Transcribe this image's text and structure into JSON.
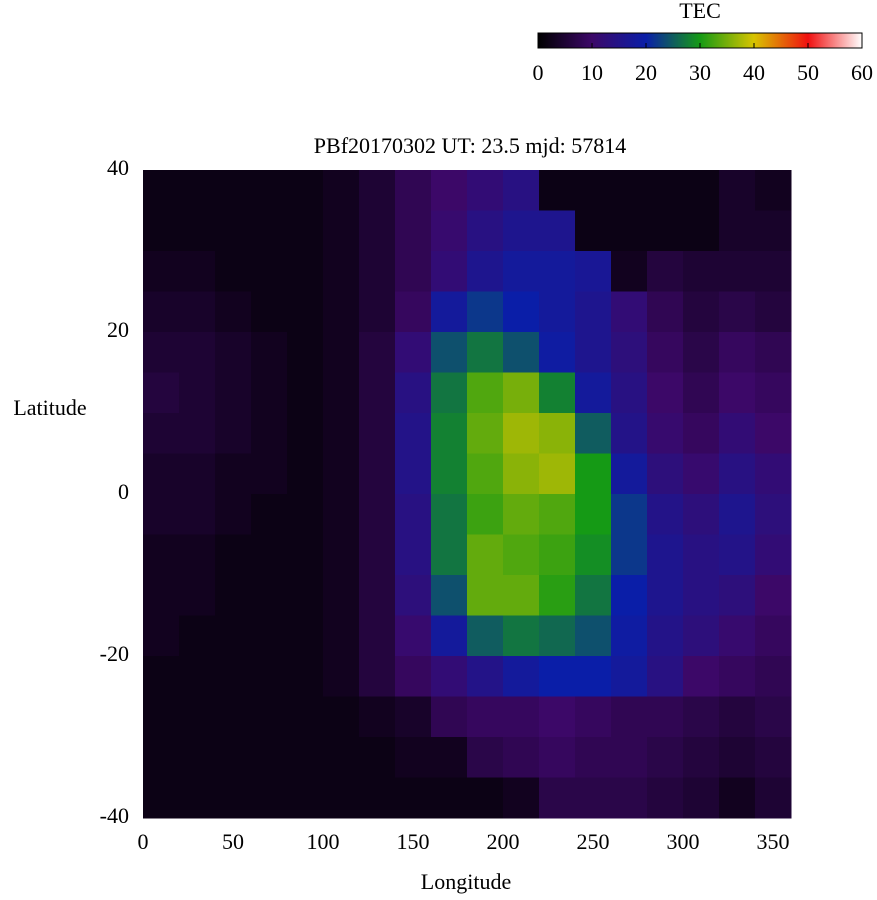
{
  "chart_data": {
    "type": "heatmap",
    "title": "PBf20170302  UT: 23.5  mjd: 57814",
    "x_label": "Longitude",
    "y_label": "Latitude",
    "xlim": [
      0,
      360
    ],
    "xticks": [
      0,
      50,
      100,
      150,
      200,
      250,
      300,
      350
    ],
    "ylim": [
      -40,
      40
    ],
    "yticks": [
      -40,
      -20,
      0,
      20,
      40
    ],
    "colorbar_label": "TEC",
    "clim": [
      0,
      60
    ],
    "cticks": [
      0,
      10,
      20,
      30,
      40,
      50,
      60
    ],
    "colorscale": [
      "#000000",
      "#3c0868",
      "#0a1ea8",
      "#159a15",
      "#d8c400",
      "#f01010",
      "#ffffff"
    ],
    "z": [
      [
        2,
        2,
        2,
        2,
        2,
        3,
        5,
        8,
        10,
        12,
        14,
        2,
        2,
        2,
        2,
        2,
        4,
        3
      ],
      [
        2,
        2,
        2,
        2,
        2,
        3,
        5,
        8,
        11,
        14,
        16,
        16,
        2,
        2,
        2,
        2,
        4,
        4
      ],
      [
        3,
        3,
        2,
        2,
        2,
        3,
        5,
        8,
        12,
        16,
        18,
        18,
        17,
        3,
        6,
        5,
        5,
        5
      ],
      [
        4,
        4,
        3,
        2,
        2,
        3,
        5,
        9,
        18,
        22,
        20,
        18,
        16,
        12,
        8,
        6,
        7,
        6
      ],
      [
        5,
        5,
        4,
        3,
        2,
        3,
        6,
        12,
        24,
        27,
        24,
        19,
        16,
        13,
        9,
        7,
        9,
        8
      ],
      [
        6,
        5,
        4,
        3,
        2,
        3,
        6,
        14,
        27,
        33,
        35,
        28,
        18,
        14,
        10,
        8,
        10,
        9
      ],
      [
        5,
        5,
        4,
        3,
        2,
        3,
        6,
        15,
        28,
        34,
        37,
        36,
        25,
        15,
        11,
        9,
        12,
        10
      ],
      [
        4,
        4,
        3,
        3,
        2,
        3,
        6,
        15,
        28,
        33,
        36,
        37,
        30,
        18,
        13,
        11,
        14,
        12
      ],
      [
        4,
        4,
        3,
        2,
        2,
        3,
        6,
        14,
        27,
        32,
        34,
        33,
        30,
        22,
        15,
        13,
        16,
        13
      ],
      [
        3,
        3,
        2,
        2,
        2,
        3,
        6,
        14,
        27,
        34,
        33,
        32,
        29,
        22,
        16,
        14,
        15,
        12
      ],
      [
        3,
        3,
        2,
        2,
        2,
        3,
        6,
        13,
        24,
        34,
        34,
        31,
        27,
        20,
        16,
        14,
        13,
        10
      ],
      [
        3,
        2,
        2,
        2,
        2,
        3,
        6,
        11,
        18,
        25,
        27,
        26,
        24,
        19,
        15,
        13,
        11,
        9
      ],
      [
        2,
        2,
        2,
        2,
        2,
        3,
        6,
        9,
        12,
        15,
        18,
        20,
        20,
        18,
        14,
        10,
        9,
        8
      ],
      [
        2,
        2,
        2,
        2,
        2,
        2,
        3,
        4,
        8,
        9,
        9,
        10,
        9,
        8,
        8,
        7,
        6,
        7
      ],
      [
        2,
        2,
        2,
        2,
        2,
        2,
        2,
        3,
        3,
        7,
        8,
        9,
        8,
        8,
        7,
        6,
        5,
        6
      ],
      [
        2,
        2,
        2,
        2,
        2,
        2,
        2,
        2,
        2,
        2,
        3,
        7,
        7,
        7,
        6,
        5,
        3,
        5
      ]
    ]
  }
}
